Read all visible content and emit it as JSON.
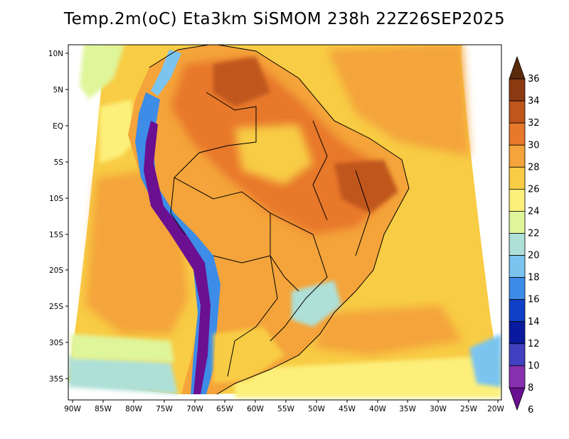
{
  "title": "Temp.2m(oC) Eta3km SiSMOM 238h 22Z26SEP2025",
  "lat_labels": [
    "10N",
    "5N",
    "EQ",
    "5S",
    "10S",
    "15S",
    "20S",
    "25S",
    "30S",
    "35S"
  ],
  "lon_labels": [
    "90W",
    "85W",
    "80W",
    "75W",
    "70W",
    "65W",
    "60W",
    "55W",
    "50W",
    "45W",
    "40W",
    "35W",
    "30W",
    "25W",
    "20W"
  ],
  "colorbar": {
    "labels": [
      "36",
      "34",
      "32",
      "30",
      "28",
      "26",
      "24",
      "22",
      "20",
      "18",
      "16",
      "14",
      "12",
      "10",
      "8",
      "6"
    ],
    "colors": [
      "#5a2a0a",
      "#8b3a12",
      "#c0561c",
      "#e8782a",
      "#f4a43a",
      "#f8cc44",
      "#fcef7a",
      "#dff59a",
      "#aee0d8",
      "#7cc4f0",
      "#3c8ce8",
      "#1040c8",
      "#0a1aa0",
      "#4040c0",
      "#8830b0",
      "#6a1090"
    ]
  }
}
